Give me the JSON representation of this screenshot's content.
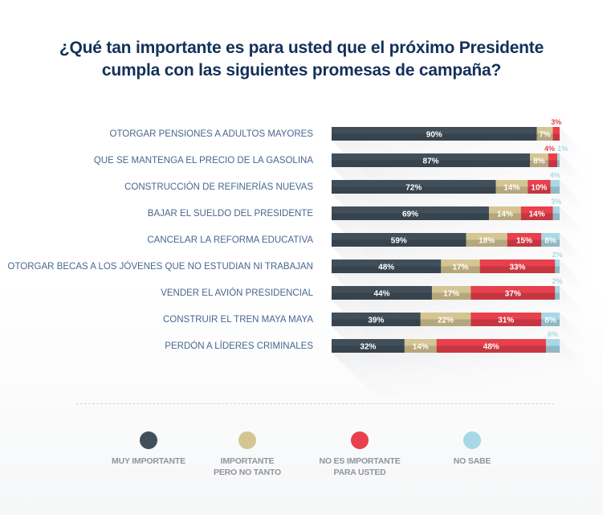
{
  "title_line1": "¿Qué tan importante es para usted que el próximo Presidente",
  "title_line2": "cumpla con las siguientes promesas de campaña?",
  "chart_data": {
    "type": "bar",
    "orientation": "horizontal",
    "stacked": true,
    "title": "¿Qué tan importante es para usted que el próximo Presidente cumpla con las siguientes promesas de campaña?",
    "xlabel": "",
    "ylabel": "",
    "xlim": [
      0,
      100
    ],
    "unit": "%",
    "grid": false,
    "legend_position": "bottom",
    "categories": [
      "OTORGAR PENSIONES A ADULTOS MAYORES",
      "QUE SE MANTENGA EL PRECIO DE LA GASOLINA",
      "CONSTRUCCIÓN DE REFINERÍAS NUEVAS",
      "BAJAR EL SUELDO DEL PRESIDENTE",
      "CANCELAR LA REFORMA EDUCATIVA",
      "OTORGAR BECAS A LOS JÓVENES QUE NO ESTUDIAN NI TRABAJAN",
      "VENDER EL AVIÓN PRESIDENCIAL",
      "CONSTRUIR EL TREN MAYA MAYA",
      "PERDÓN A LÍDERES CRIMINALES"
    ],
    "series": [
      {
        "name": "MUY IMPORTANTE",
        "color": "#414f5a",
        "values": [
          90,
          87,
          72,
          69,
          59,
          48,
          44,
          39,
          32
        ]
      },
      {
        "name": "IMPORTANTE PERO NO TANTO",
        "color": "#d5c592",
        "values": [
          7,
          8,
          14,
          14,
          18,
          17,
          17,
          22,
          14
        ]
      },
      {
        "name": "NO ES IMPORTANTE PARA USTED",
        "color": "#e8404c",
        "values": [
          3,
          4,
          10,
          14,
          15,
          33,
          37,
          31,
          48
        ]
      },
      {
        "name": "NO SABE",
        "color": "#a8d8e6",
        "values": [
          0,
          1,
          4,
          3,
          8,
          2,
          2,
          8,
          6
        ]
      }
    ]
  },
  "legend": [
    {
      "label": "MUY IMPORTANTE",
      "color": "#414f5a"
    },
    {
      "label": "IMPORTANTE\nPERO NO TANTO",
      "color": "#d5c592"
    },
    {
      "label": "NO ES IMPORTANTE\nPARA USTED",
      "color": "#e8404c"
    },
    {
      "label": "NO SABE",
      "color": "#a8d8e6"
    }
  ]
}
